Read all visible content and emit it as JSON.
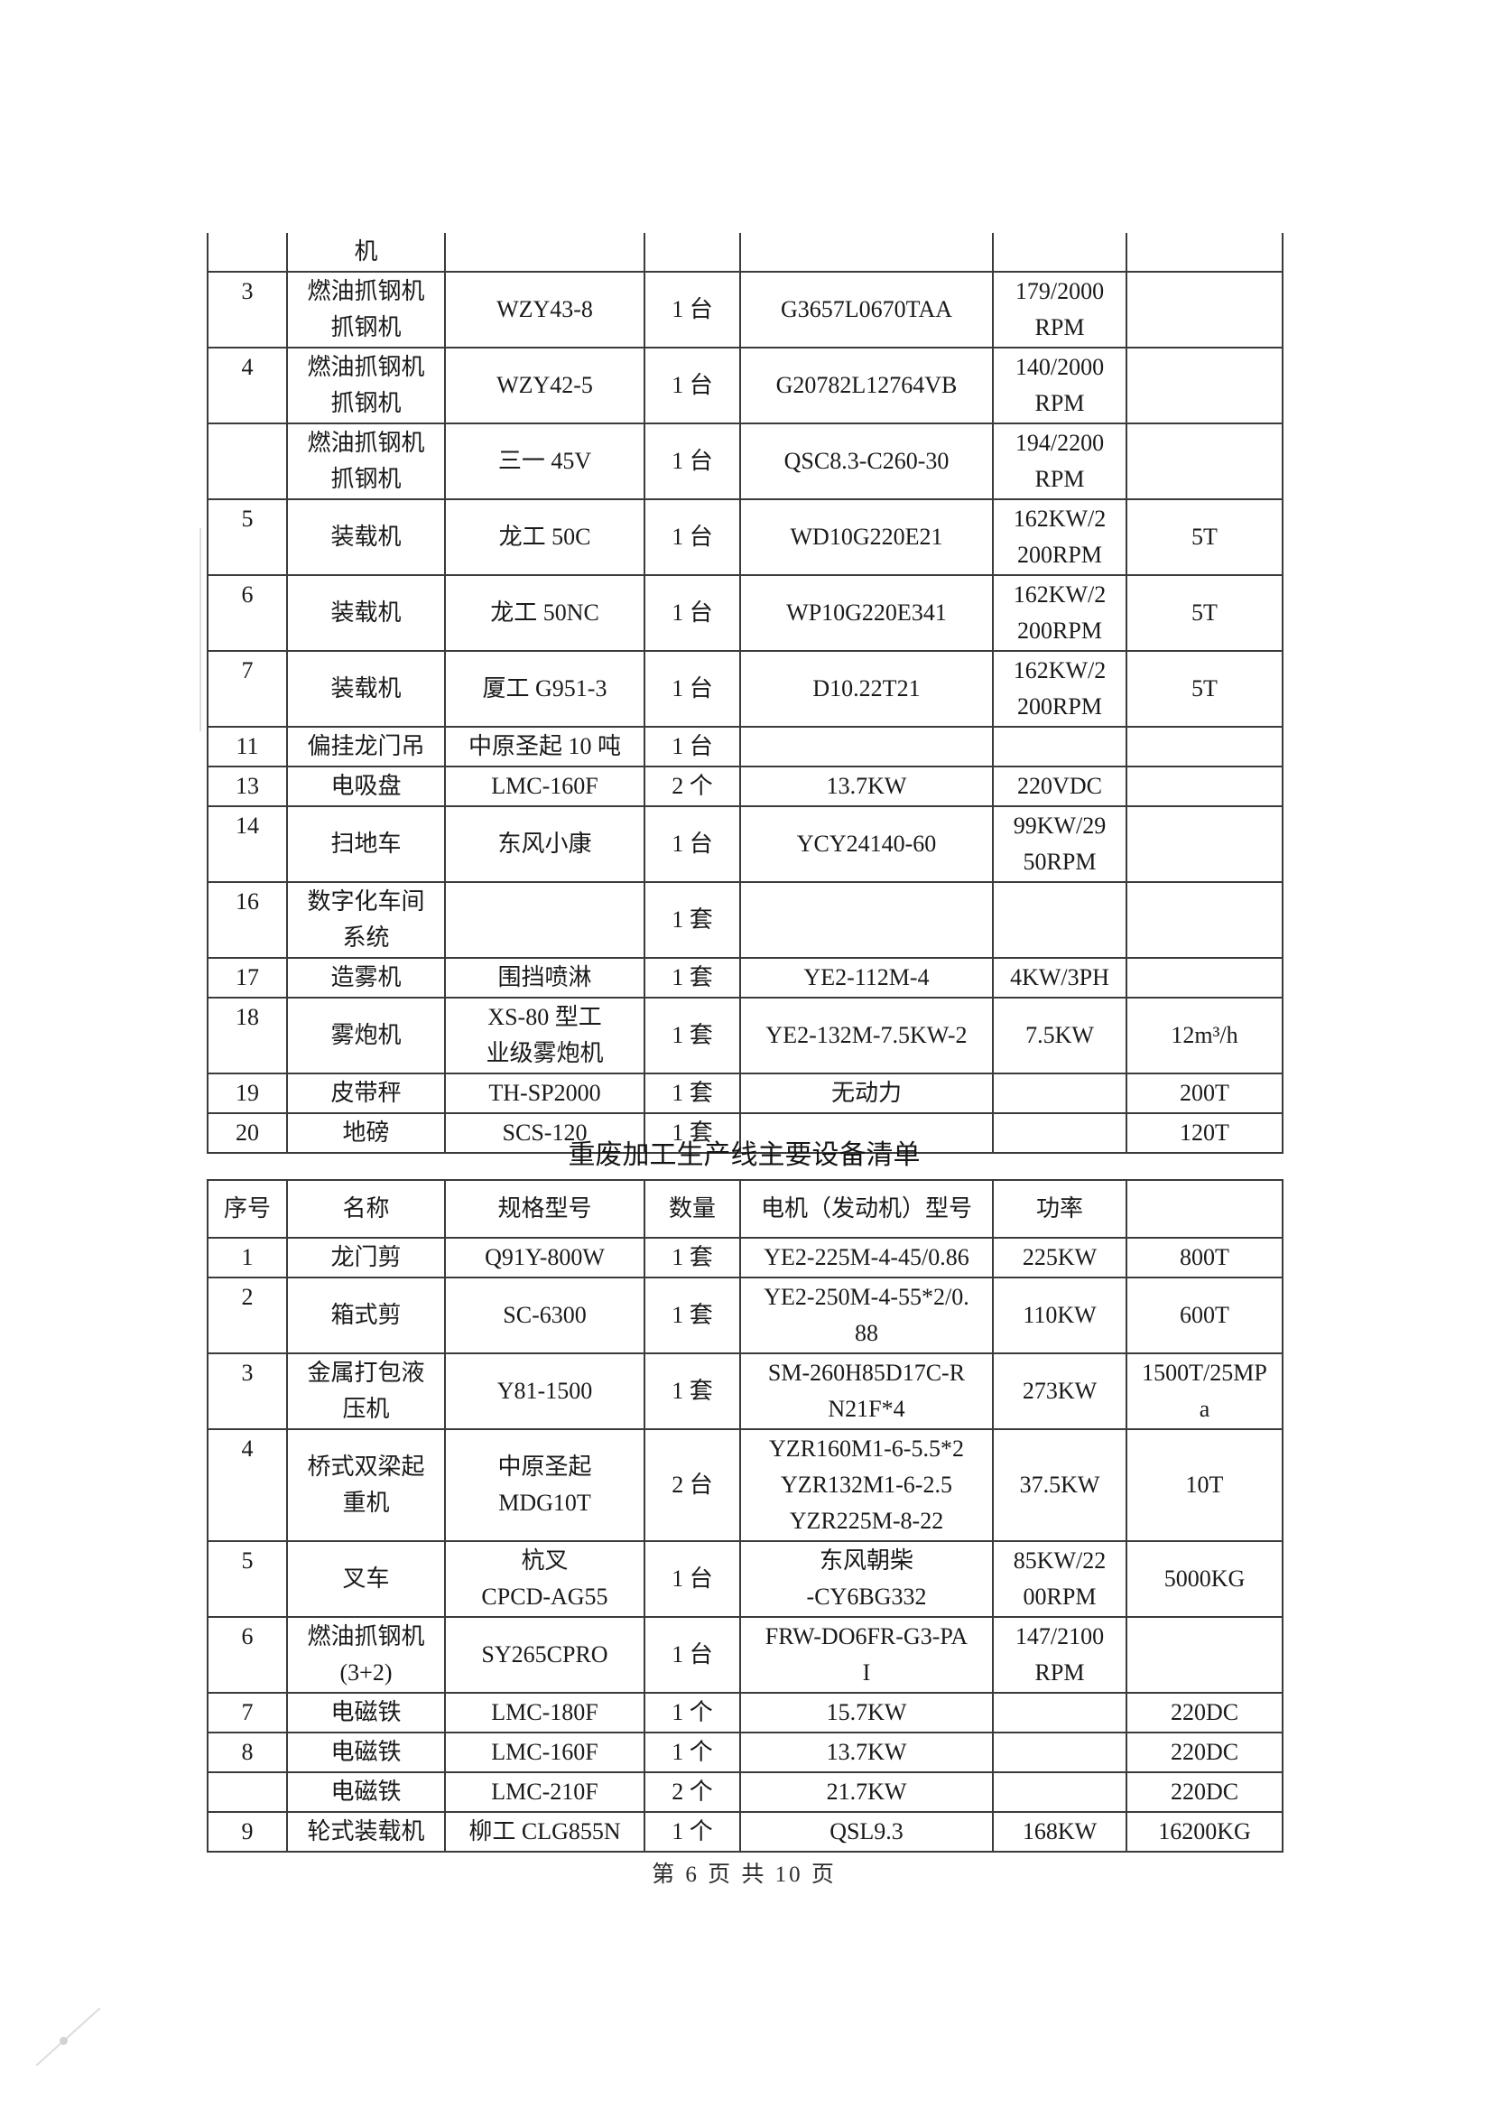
{
  "page": {
    "footer": "第 6 页 共 10 页",
    "text_color": "#1a1a1a",
    "border_color": "#3b3b3b",
    "background_color": "#ffffff"
  },
  "table1": {
    "note_first_row_is_continuation": "机",
    "rows": [
      [
        "",
        "机",
        "",
        "",
        "",
        "",
        ""
      ],
      [
        "3",
        "燃油抓钢机\n抓钢机",
        "WZY43-8",
        "1 台",
        "G3657L0670TAA",
        "179/2000\nRPM",
        ""
      ],
      [
        "4",
        "燃油抓钢机\n抓钢机",
        "WZY42-5",
        "1 台",
        "G20782L12764VB",
        "140/2000\nRPM",
        ""
      ],
      [
        "",
        "燃油抓钢机\n抓钢机",
        "三一 45V",
        "1 台",
        "QSC8.3-C260-30",
        "194/2200\nRPM",
        ""
      ],
      [
        "5",
        "装载机",
        "龙工 50C",
        "1 台",
        "WD10G220E21",
        "162KW/2\n200RPM",
        "5T"
      ],
      [
        "6",
        "装载机",
        "龙工 50NC",
        "1 台",
        "WP10G220E341",
        "162KW/2\n200RPM",
        "5T"
      ],
      [
        "7",
        "装载机",
        "厦工 G951-3",
        "1 台",
        "D10.22T21",
        "162KW/2\n200RPM",
        "5T"
      ],
      [
        "11",
        "偏挂龙门吊",
        "中原圣起 10 吨",
        "1 台",
        "",
        "",
        ""
      ],
      [
        "13",
        "电吸盘",
        "LMC-160F",
        "2 个",
        "13.7KW",
        "220VDC",
        ""
      ],
      [
        "14",
        "扫地车",
        "东风小康",
        "1 台",
        "YCY24140-60",
        "99KW/29\n50RPM",
        ""
      ],
      [
        "16",
        "数字化车间\n系统",
        "",
        "1 套",
        "",
        "",
        ""
      ],
      [
        "17",
        "造雾机",
        "围挡喷淋",
        "1 套",
        "YE2-112M-4",
        "4KW/3PH",
        ""
      ],
      [
        "18",
        "雾炮机",
        "XS-80 型工\n业级雾炮机",
        "1 套",
        "YE2-132M-7.5KW-2",
        "7.5KW",
        "12m³/h"
      ],
      [
        "19",
        "皮带秤",
        "TH-SP2000",
        "1 套",
        "无动力",
        "",
        "200T"
      ],
      [
        "20",
        "地磅",
        "SCS-120",
        "1 套",
        "",
        "",
        "120T"
      ]
    ]
  },
  "table2": {
    "title": "重废加工生产线主要设备清单",
    "header": [
      "序号",
      "名称",
      "规格型号",
      "数量",
      "电机（发动机）型号",
      "功率",
      ""
    ],
    "rows": [
      [
        "1",
        "龙门剪",
        "Q91Y-800W",
        "1 套",
        "YE2-225M-4-45/0.86",
        "225KW",
        "800T"
      ],
      [
        "2",
        "箱式剪",
        "SC-6300",
        "1 套",
        "YE2-250M-4-55*2/0.\n88",
        "110KW",
        "600T"
      ],
      [
        "3",
        "金属打包液\n压机",
        "Y81-1500",
        "1 套",
        "SM-260H85D17C-R\nN21F*4",
        "273KW",
        "1500T/25MP\na"
      ],
      [
        "4",
        "桥式双梁起\n重机",
        "中原圣起\nMDG10T",
        "2 台",
        "YZR160M1-6-5.5*2\nYZR132M1-6-2.5\nYZR225M-8-22",
        "37.5KW",
        "10T"
      ],
      [
        "5",
        "叉车",
        "杭叉\nCPCD-AG55",
        "1 台",
        "东风朝柴\n-CY6BG332",
        "85KW/22\n00RPM",
        "5000KG"
      ],
      [
        "6",
        "燃油抓钢机\n(3+2)",
        "SY265CPRO",
        "1 台",
        "FRW-DO6FR-G3-PA\nI",
        "147/2100\nRPM",
        ""
      ],
      [
        "7",
        "电磁铁",
        "LMC-180F",
        "1 个",
        "15.7KW",
        "",
        "220DC"
      ],
      [
        "8",
        "电磁铁",
        "LMC-160F",
        "1 个",
        "13.7KW",
        "",
        "220DC"
      ],
      [
        "",
        "电磁铁",
        "LMC-210F",
        "2 个",
        "21.7KW",
        "",
        "220DC"
      ],
      [
        "9",
        "轮式装载机",
        "柳工 CLG855N",
        "1 个",
        "QSL9.3",
        "168KW",
        "16200KG"
      ]
    ]
  }
}
